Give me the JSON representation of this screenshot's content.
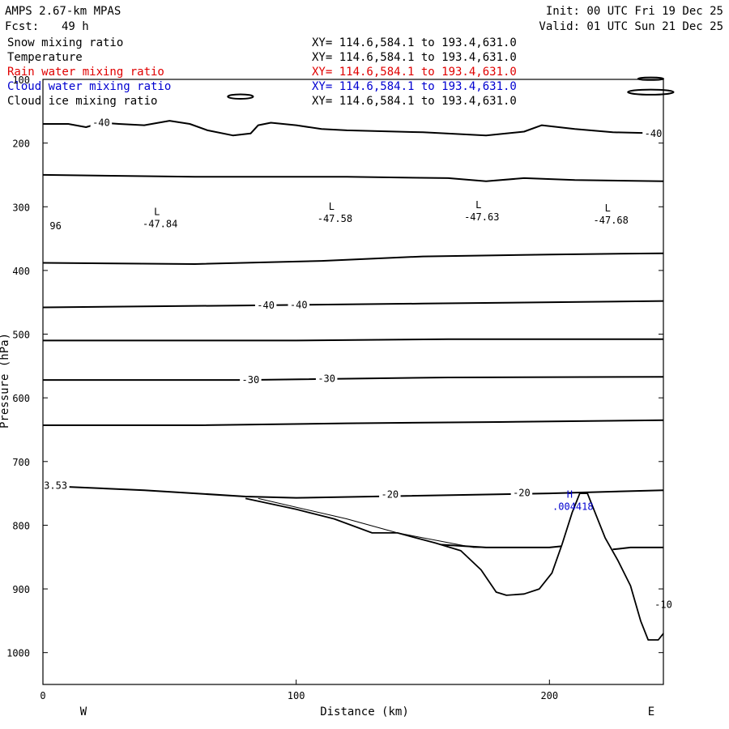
{
  "header": {
    "model": "AMPS 2.67-km MPAS",
    "fcst_label": "Fcst:",
    "fcst_value": "49 h",
    "init": "Init: 00 UTC Fri 19 Dec 25",
    "valid": "Valid: 01 UTC Sun 21 Dec 25"
  },
  "fields": [
    {
      "name": "Snow mixing ratio",
      "xy": "XY= 114.6,584.1 to 193.4,631.0",
      "color": "#000000"
    },
    {
      "name": "Temperature",
      "xy": "XY= 114.6,584.1 to 193.4,631.0",
      "color": "#000000"
    },
    {
      "name": "Rain water mixing ratio",
      "xy": "XY= 114.6,584.1 to 193.4,631.0",
      "color": "#e00000"
    },
    {
      "name": "Cloud water mixing ratio",
      "xy": "XY= 114.6,584.1 to 193.4,631.0",
      "color": "#0000d0"
    },
    {
      "name": "Cloud ice mixing ratio",
      "xy": "XY= 114.6,584.1 to 193.4,631.0",
      "color": "#000000"
    }
  ],
  "chart_data": {
    "type": "line",
    "xlabel": "Distance (km)",
    "ylabel": "Pressure (hPa)",
    "xlim": [
      0,
      245
    ],
    "ylim": [
      1050,
      100
    ],
    "x_ticks": [
      0,
      100,
      200
    ],
    "y_ticks": [
      100,
      200,
      300,
      400,
      500,
      600,
      700,
      800,
      900,
      1000
    ],
    "x_end_labels": {
      "left": "W",
      "right": "E"
    },
    "terrain": [
      [
        0,
        1050
      ],
      [
        80,
        758
      ],
      [
        100,
        775
      ],
      [
        115,
        790
      ],
      [
        130,
        812
      ],
      [
        140,
        812
      ],
      [
        155,
        828
      ],
      [
        165,
        840
      ],
      [
        173,
        870
      ],
      [
        179,
        905
      ],
      [
        183,
        910
      ],
      [
        190,
        908
      ],
      [
        196,
        900
      ],
      [
        201,
        875
      ],
      [
        205,
        830
      ],
      [
        209,
        780
      ],
      [
        212,
        750
      ],
      [
        215,
        750
      ],
      [
        218,
        780
      ],
      [
        222,
        820
      ],
      [
        227,
        855
      ],
      [
        232,
        895
      ],
      [
        236,
        950
      ],
      [
        239,
        980
      ],
      [
        243,
        980
      ],
      [
        245,
        970
      ],
      [
        245,
        1050
      ]
    ],
    "contours": [
      {
        "name": "isotherm",
        "points": [
          [
            0,
            170
          ],
          [
            10,
            170
          ],
          [
            17,
            175
          ],
          [
            23,
            168
          ],
          [
            30,
            170
          ],
          [
            40,
            172
          ],
          [
            50,
            165
          ],
          [
            58,
            170
          ],
          [
            65,
            180
          ],
          [
            75,
            188
          ],
          [
            82,
            185
          ],
          [
            85,
            172
          ],
          [
            90,
            168
          ],
          [
            100,
            172
          ],
          [
            110,
            178
          ],
          [
            120,
            180
          ],
          [
            150,
            183
          ],
          [
            175,
            188
          ],
          [
            190,
            182
          ],
          [
            197,
            172
          ],
          [
            210,
            178
          ],
          [
            225,
            183
          ],
          [
            245,
            185
          ]
        ]
      },
      {
        "name": "isotherm",
        "points": [
          [
            0,
            250
          ],
          [
            60,
            253
          ],
          [
            120,
            253
          ],
          [
            160,
            255
          ],
          [
            175,
            260
          ],
          [
            190,
            255
          ],
          [
            210,
            258
          ],
          [
            245,
            260
          ]
        ]
      },
      {
        "name": "isotherm",
        "points": [
          [
            0,
            388
          ],
          [
            60,
            390
          ],
          [
            110,
            385
          ],
          [
            150,
            378
          ],
          [
            200,
            375
          ],
          [
            245,
            373
          ]
        ]
      },
      {
        "name": "isotherm",
        "points": [
          [
            0,
            458
          ],
          [
            80,
            455
          ],
          [
            150,
            452
          ],
          [
            245,
            448
          ]
        ]
      },
      {
        "name": "isotherm",
        "points": [
          [
            0,
            510
          ],
          [
            100,
            510
          ],
          [
            160,
            508
          ],
          [
            245,
            508
          ]
        ]
      },
      {
        "name": "isotherm",
        "points": [
          [
            0,
            572
          ],
          [
            80,
            572
          ],
          [
            160,
            568
          ],
          [
            245,
            567
          ]
        ]
      },
      {
        "name": "isotherm",
        "points": [
          [
            0,
            643
          ],
          [
            60,
            643
          ],
          [
            120,
            640
          ],
          [
            180,
            638
          ],
          [
            245,
            635
          ]
        ]
      },
      {
        "name": "isotherm",
        "points": [
          [
            0,
            738
          ],
          [
            40,
            745
          ],
          [
            80,
            755
          ],
          [
            100,
            757
          ],
          [
            130,
            755
          ],
          [
            200,
            750
          ],
          [
            245,
            745
          ]
        ]
      },
      {
        "name": "isotherm",
        "points": [
          [
            155,
            830
          ],
          [
            175,
            835
          ],
          [
            200,
            835
          ],
          [
            207,
            832
          ]
        ]
      },
      {
        "name": "isotherm",
        "points": [
          [
            225,
            838
          ],
          [
            232,
            835
          ],
          [
            245,
            835
          ]
        ]
      }
    ],
    "thin_lines": [
      {
        "name": "cloud-ice",
        "points": [
          [
            85,
            758
          ],
          [
            120,
            790
          ],
          [
            140,
            812
          ],
          [
            170,
            835
          ],
          [
            200,
            835
          ]
        ]
      }
    ],
    "closed_contours": [
      {
        "name": "blob-1",
        "cx": 78,
        "cy": 127,
        "rx": 5,
        "ry": 3.5
      },
      {
        "name": "blob-2",
        "cx": 240,
        "cy": 120,
        "rx": 9,
        "ry": 4
      },
      {
        "name": "blob-3",
        "cx": 240,
        "cy": 99,
        "rx": 5,
        "ry": 2
      }
    ],
    "contour_labels": [
      {
        "x": 23,
        "p": 168,
        "text": "-40",
        "color": "#000000"
      },
      {
        "x": 241,
        "p": 185,
        "text": "-40",
        "color": "#000000"
      },
      {
        "x": 88,
        "p": 455,
        "text": "-40",
        "color": "#000000"
      },
      {
        "x": 101,
        "p": 454,
        "text": "-40",
        "color": "#000000"
      },
      {
        "x": 82,
        "p": 572,
        "text": "-30",
        "color": "#000000"
      },
      {
        "x": 112,
        "p": 570,
        "text": "-30",
        "color": "#000000"
      },
      {
        "x": 137,
        "p": 752,
        "text": "-20",
        "color": "#000000"
      },
      {
        "x": 189,
        "p": 749,
        "text": "-20",
        "color": "#000000"
      },
      {
        "x": 245,
        "p": 925,
        "text": "-10",
        "color": "#000000"
      },
      {
        "x": 5,
        "p": 738,
        "text": "3.53",
        "color": "#000000"
      },
      {
        "x": 5,
        "p": 330,
        "text": "96",
        "color": "#000000"
      }
    ],
    "extrema": [
      {
        "x": 45,
        "p": 313,
        "letter": "L",
        "value": "-47.84",
        "color": "#000000"
      },
      {
        "x": 114,
        "p": 305,
        "letter": "L",
        "value": "-47.58",
        "color": "#000000"
      },
      {
        "x": 172,
        "p": 302,
        "letter": "L",
        "value": "-47.63",
        "color": "#000000"
      },
      {
        "x": 223,
        "p": 307,
        "letter": "L",
        "value": "-47.68",
        "color": "#000000"
      },
      {
        "x": 208,
        "p": 757,
        "letter": "H",
        "value": ".004418",
        "color": "#0000d0"
      }
    ]
  }
}
